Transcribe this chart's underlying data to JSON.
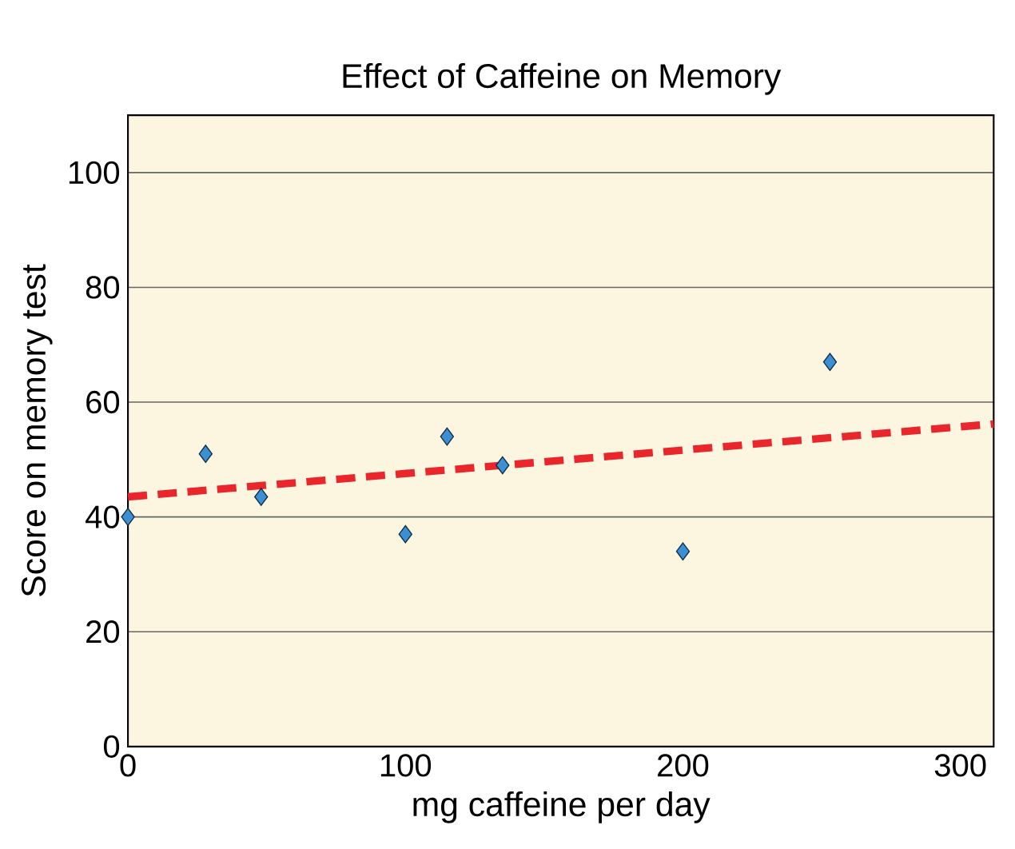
{
  "chart_data": {
    "type": "scatter",
    "title": "Effect of Caffeine on Memory",
    "xlabel": "mg caffeine per day",
    "ylabel": "Score on memory test",
    "xlim": [
      0,
      312
    ],
    "ylim": [
      0,
      110
    ],
    "xticks": [
      0,
      100,
      200,
      300
    ],
    "yticks": [
      0,
      20,
      40,
      60,
      80,
      100
    ],
    "grid": "y",
    "series": [
      {
        "marker": "diamond",
        "color": "#3b8fd2",
        "x": [
          0,
          28,
          48,
          100,
          115,
          135,
          200,
          253
        ],
        "values": [
          40,
          51,
          43.5,
          37,
          54,
          49,
          34,
          67
        ]
      },
      {
        "type": "line",
        "marker": "none",
        "color": "#e8262b",
        "line_style": "dashed",
        "x": [
          0,
          312
        ],
        "values": [
          43.5,
          56.2
        ]
      }
    ]
  }
}
